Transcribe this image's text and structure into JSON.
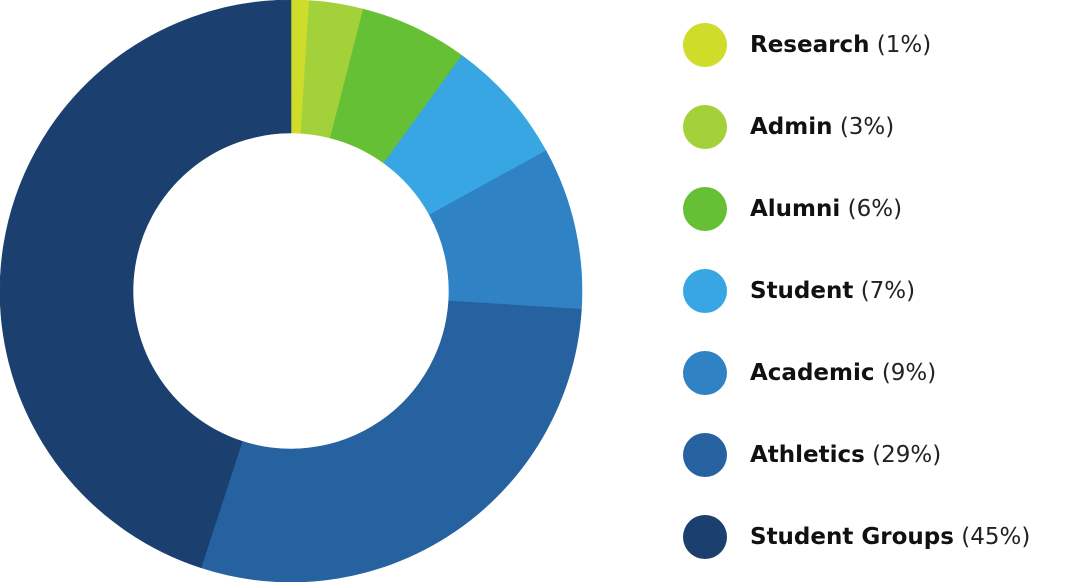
{
  "chart_data": {
    "type": "pie",
    "style": "donut",
    "title": "",
    "legend_position": "right",
    "categories": [
      "Research",
      "Admin",
      "Alumni",
      "Student",
      "Academic",
      "Athletics",
      "Student Groups"
    ],
    "values": [
      1,
      3,
      6,
      7,
      9,
      29,
      45
    ],
    "value_labels": [
      "(1%)",
      "(3%)",
      "(6%)",
      "(7%)",
      "(9%)",
      "(29%)",
      "(45%)"
    ],
    "colors": [
      "#d0dc2a",
      "#a3d13a",
      "#66c035",
      "#37a6e2",
      "#2f83c5",
      "#2762a0",
      "#1b406f"
    ]
  }
}
